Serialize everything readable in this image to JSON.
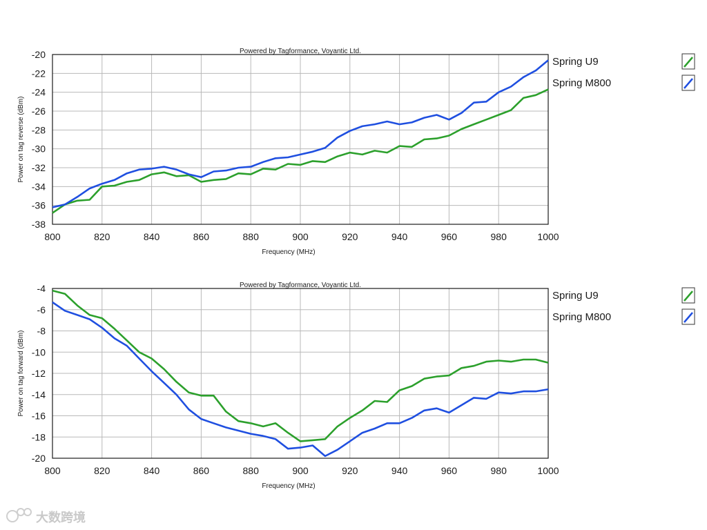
{
  "chart_data": [
    {
      "type": "line",
      "title": "Powered by Tagformance, Voyantic Ltd.",
      "xlabel": "Frequency (MHz)",
      "ylabel": "Power on tag reverse (dBm)",
      "xlim": [
        800,
        1000
      ],
      "ylim": [
        -38,
        -20
      ],
      "x_ticks": [
        800,
        820,
        840,
        860,
        880,
        900,
        920,
        940,
        960,
        980,
        1000
      ],
      "y_ticks": [
        -20,
        -22,
        -24,
        -26,
        -28,
        -30,
        -32,
        -34,
        -36,
        -38
      ],
      "grid": true,
      "legend_position": "right",
      "x": [
        800,
        805,
        810,
        815,
        820,
        825,
        830,
        835,
        840,
        845,
        850,
        855,
        860,
        865,
        870,
        875,
        880,
        885,
        890,
        895,
        900,
        905,
        910,
        915,
        920,
        925,
        930,
        935,
        940,
        945,
        950,
        955,
        960,
        965,
        970,
        975,
        980,
        985,
        990,
        995,
        1000
      ],
      "series": [
        {
          "name": "Spring U9",
          "color": "#2ca02c",
          "values": [
            -36.8,
            -35.9,
            -35.5,
            -35.4,
            -34.0,
            -33.9,
            -33.5,
            -33.3,
            -32.7,
            -32.5,
            -32.9,
            -32.8,
            -33.5,
            -33.3,
            -33.2,
            -32.6,
            -32.7,
            -32.1,
            -32.2,
            -31.6,
            -31.7,
            -31.3,
            -31.4,
            -30.8,
            -30.4,
            -30.6,
            -30.2,
            -30.4,
            -29.7,
            -29.8,
            -29.0,
            -28.9,
            -28.6,
            -27.9,
            -27.4,
            -26.9,
            -26.4,
            -25.9,
            -24.6,
            -24.3,
            -23.7
          ]
        },
        {
          "name": "Spring M800",
          "color": "#1f4fe0",
          "values": [
            -36.2,
            -35.9,
            -35.1,
            -34.2,
            -33.7,
            -33.3,
            -32.6,
            -32.2,
            -32.1,
            -31.9,
            -32.2,
            -32.7,
            -33.0,
            -32.4,
            -32.3,
            -32.0,
            -31.9,
            -31.4,
            -31.0,
            -30.9,
            -30.6,
            -30.3,
            -29.9,
            -28.8,
            -28.1,
            -27.6,
            -27.4,
            -27.1,
            -27.4,
            -27.2,
            -26.7,
            -26.4,
            -26.9,
            -26.2,
            -25.1,
            -25.0,
            -24.0,
            -23.4,
            -22.4,
            -21.7,
            -20.6
          ]
        }
      ]
    },
    {
      "type": "line",
      "title": "Powered by Tagformance, Voyantic Ltd.",
      "xlabel": "Frequency (MHz)",
      "ylabel": "Power on tag forward (dBm)",
      "xlim": [
        800,
        1000
      ],
      "ylim": [
        -20,
        -4
      ],
      "x_ticks": [
        800,
        820,
        840,
        860,
        880,
        900,
        920,
        940,
        960,
        980,
        1000
      ],
      "y_ticks": [
        -4,
        -6,
        -8,
        -10,
        -12,
        -14,
        -16,
        -18,
        -20
      ],
      "grid": true,
      "legend_position": "right",
      "x": [
        800,
        805,
        810,
        815,
        820,
        825,
        830,
        835,
        840,
        845,
        850,
        855,
        860,
        865,
        870,
        875,
        880,
        885,
        890,
        895,
        900,
        905,
        910,
        915,
        920,
        925,
        930,
        935,
        940,
        945,
        950,
        955,
        960,
        965,
        970,
        975,
        980,
        985,
        990,
        995,
        1000
      ],
      "series": [
        {
          "name": "Spring U9",
          "color": "#2ca02c",
          "values": [
            -4.2,
            -4.5,
            -5.6,
            -6.5,
            -6.8,
            -7.8,
            -8.9,
            -10.0,
            -10.6,
            -11.6,
            -12.8,
            -13.8,
            -14.1,
            -14.1,
            -15.6,
            -16.5,
            -16.7,
            -17.0,
            -16.7,
            -17.6,
            -18.4,
            -18.3,
            -18.2,
            -17.0,
            -16.2,
            -15.5,
            -14.6,
            -14.7,
            -13.6,
            -13.2,
            -12.5,
            -12.3,
            -12.2,
            -11.5,
            -11.3,
            -10.9,
            -10.8,
            -10.9,
            -10.7,
            -10.7,
            -11.0
          ]
        },
        {
          "name": "Spring M800",
          "color": "#1f4fe0",
          "values": [
            -5.3,
            -6.1,
            -6.5,
            -6.9,
            -7.7,
            -8.7,
            -9.4,
            -10.6,
            -11.8,
            -12.9,
            -14.0,
            -15.4,
            -16.3,
            -16.7,
            -17.1,
            -17.4,
            -17.7,
            -17.9,
            -18.2,
            -19.1,
            -19.0,
            -18.8,
            -19.8,
            -19.2,
            -18.4,
            -17.6,
            -17.2,
            -16.7,
            -16.7,
            -16.2,
            -15.5,
            -15.3,
            -15.7,
            -15.0,
            -14.3,
            -14.4,
            -13.8,
            -13.9,
            -13.7,
            -13.7,
            -13.5
          ]
        }
      ]
    }
  ],
  "watermark": {
    "text": "大数跨境",
    "icon": "logo-icon"
  }
}
